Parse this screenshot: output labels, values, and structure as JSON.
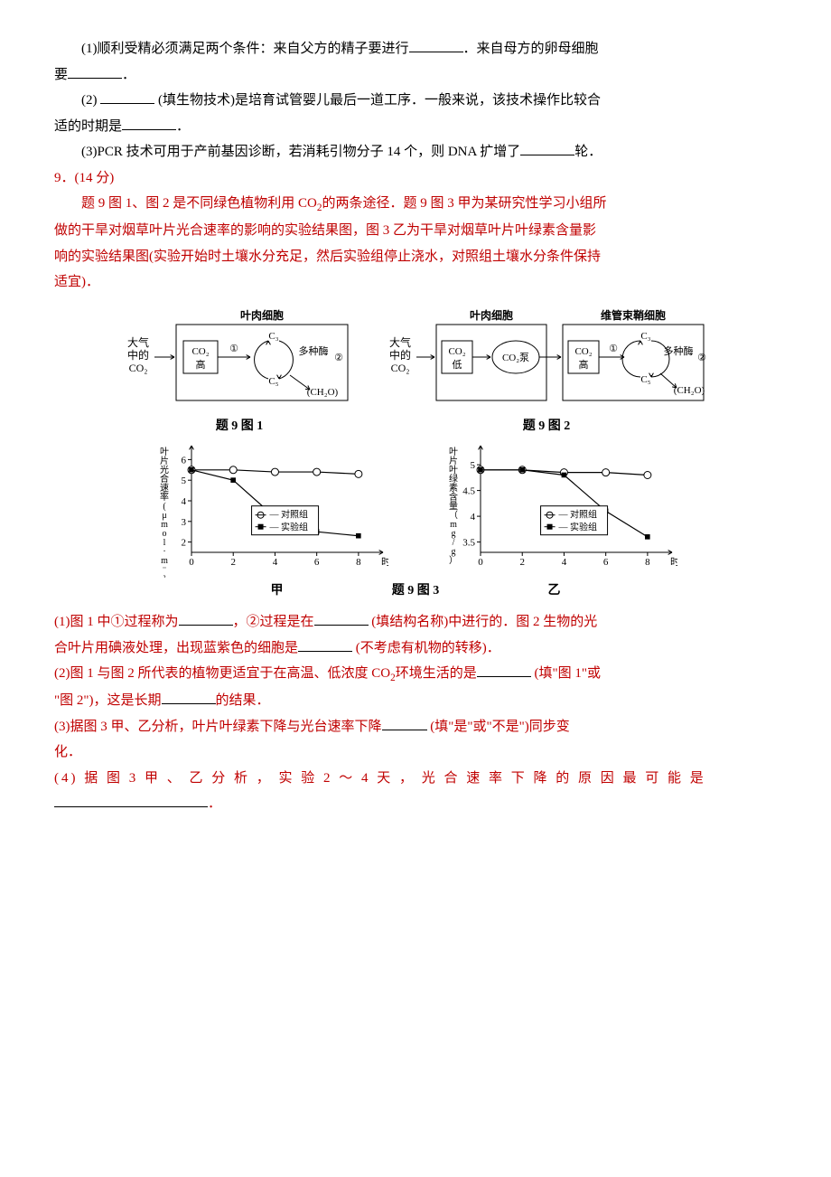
{
  "q8": {
    "line1_a": "(1)顺利受精必须满足两个条件：来自父方的精子要进行",
    "line1_b": "．来自母方的卵母细胞",
    "line2_a": "要",
    "line2_b": "．",
    "line3_a": "(2) ",
    "line3_b": " (填生物技术)是培育试管婴儿最后一道工序．一般来说，该技术操作比较合",
    "line4_a": "适的时期是",
    "line4_b": "．",
    "line5_a": "(3)PCR 技术可用于产前基因诊断，若消耗引物分子 14 个，则 DNA 扩增了",
    "line5_b": "轮．"
  },
  "q9": {
    "head": "9．(14 分)",
    "intro1": "题 9 图 1、图 2 是不同绿色植物利用 CO",
    "intro1b": "的两条途径．题 9 图 3 甲为某研究性学习小组所",
    "intro2": "做的干旱对烟草叶片光合速率的影响的实验结果图，图 3 乙为干旱对烟草叶片叶绿素含量影",
    "intro3": "响的实验结果图(实验开始时土壤水分充足，然后实验组停止浇水，对照组土壤水分条件保持",
    "intro4": "适宜)．",
    "sub1a": "(1)图 1 中①过程称为",
    "sub1b": "，②过程是在",
    "sub1c": " (填结构名称)中进行的．图 2 生物的光",
    "sub1d": "合叶片用碘液处理，出现蓝紫色的细胞是",
    "sub1e": " (不考虑有机物的转移)．",
    "sub2a": "(2)图 1 与图 2 所代表的植物更适宜于在高温、低浓度 CO",
    "sub2b": "环境生活的是",
    "sub2c": " (填\"图 1\"或",
    "sub2d": "\"图 2\")，这是长期",
    "sub2e": "的结果．",
    "sub3a": "(3)据图 3 甲、乙分析，叶片叶绿素下降与光台速率下降",
    "sub3b": " (填\"是\"或\"不是\")同步变",
    "sub3c": "化．",
    "sub4a": "(4) 据 图 3 甲 、 乙 分 析 ， 实 验 2 ～ 4 天 ， 光 合 速 率 下 降 的 原 因 最 可 能 是",
    "sub4b": "．"
  },
  "fig1": {
    "caption": "题 9 图 1",
    "cell_title": "叶肉细胞",
    "left_lines": [
      "大气",
      "中的",
      "CO₂"
    ],
    "co2": "CO₂",
    "hi": "高",
    "c3": "C₃",
    "c5": "C₅",
    "enzyme": "多种酶",
    "ch2o": "(CH₂O)",
    "mark1": "①",
    "mark2": "②",
    "colors": {
      "stroke": "#000000",
      "fill": "#ffffff"
    }
  },
  "fig2": {
    "caption": "题 9 图 2",
    "cell1": "叶肉细胞",
    "cell2": "维管束鞘细胞",
    "left_lines": [
      "大气",
      "中的",
      "CO₂"
    ],
    "co2": "CO₂",
    "lo": "低",
    "hi": "高",
    "pump": "CO₂泵",
    "c3": "C₃",
    "c5": "C₅",
    "enzyme": "多种酶",
    "ch2o": "(CH₂O)",
    "mark1": "①",
    "mark2": "②"
  },
  "fig3": {
    "caption": "题 9 图 3",
    "sub_l": "甲",
    "sub_r": "乙",
    "xlab": "时间（d）",
    "ylab_l": "叶片光合速率(μmol·m⁻²·s⁻¹)",
    "ylab_r": "叶片叶绿素含量（mg/g）",
    "legend": [
      "对照组",
      "实验组"
    ],
    "chartL": {
      "type": "line",
      "xticks": [
        0,
        2,
        4,
        6,
        8
      ],
      "yticks": [
        2,
        3,
        4,
        5,
        6
      ],
      "xlim": [
        0,
        9
      ],
      "ylim": [
        1.5,
        6.5
      ],
      "control": {
        "x": [
          0,
          2,
          4,
          6,
          8
        ],
        "y": [
          5.5,
          5.5,
          5.4,
          5.4,
          5.3
        ],
        "marker": "circle-open"
      },
      "exp": {
        "x": [
          0,
          2,
          4,
          6,
          8
        ],
        "y": [
          5.5,
          5.0,
          3.2,
          2.5,
          2.3
        ],
        "marker": "square-filled"
      },
      "colors": {
        "line": "#000000",
        "bg": "#ffffff",
        "axis": "#000000"
      },
      "line_width": 1.2,
      "marker_size": 4
    },
    "chartR": {
      "type": "line",
      "xticks": [
        0,
        2,
        4,
        6,
        8
      ],
      "yticks": [
        3.5,
        4,
        4.5,
        5
      ],
      "xlim": [
        0,
        9
      ],
      "ylim": [
        3.3,
        5.3
      ],
      "control": {
        "x": [
          0,
          2,
          4,
          6,
          8
        ],
        "y": [
          4.9,
          4.9,
          4.85,
          4.85,
          4.8
        ],
        "marker": "circle-open"
      },
      "exp": {
        "x": [
          0,
          2,
          4,
          6,
          8
        ],
        "y": [
          4.9,
          4.9,
          4.8,
          4.1,
          3.6
        ],
        "marker": "square-filled"
      },
      "colors": {
        "line": "#000000",
        "bg": "#ffffff",
        "axis": "#000000"
      },
      "line_width": 1.2,
      "marker_size": 4
    }
  },
  "blanks": {
    "w_short": 60,
    "w_med": 80,
    "w_long": 170
  }
}
